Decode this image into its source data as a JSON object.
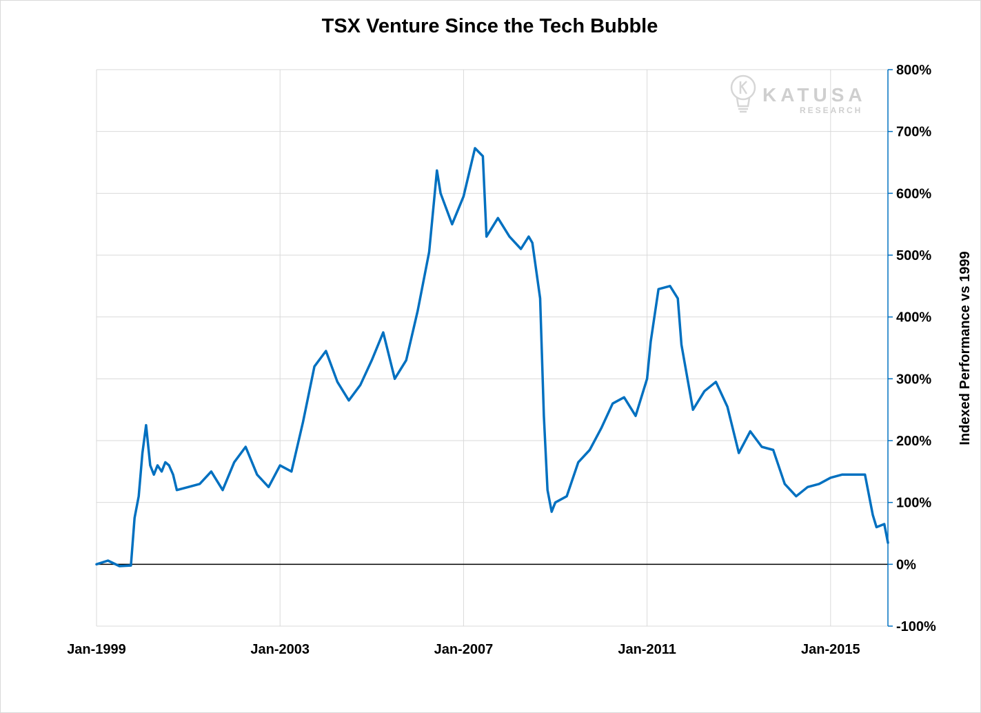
{
  "chart_data": {
    "type": "line",
    "title": "TSX Venture Since the Tech Bubble",
    "ylabel": "Indexed Performance vs 1999",
    "xlabel": "",
    "ylim": [
      -100,
      800
    ],
    "y_ticks": [
      "-100%",
      "0%",
      "100%",
      "200%",
      "300%",
      "400%",
      "500%",
      "600%",
      "700%",
      "800%"
    ],
    "x_ticks": [
      "Jan-1999",
      "Jan-2003",
      "Jan-2007",
      "Jan-2011",
      "Jan-2015"
    ],
    "x_start": "Jan-1999",
    "x_end": "Apr-2016",
    "grid": true,
    "series": [
      {
        "color": "#0070C0",
        "x": [
          1999.0,
          1999.25,
          1999.5,
          1999.75,
          1999.83,
          1999.92,
          2000.0,
          2000.08,
          2000.17,
          2000.25,
          2000.33,
          2000.42,
          2000.5,
          2000.58,
          2000.67,
          2000.75,
          2001.0,
          2001.25,
          2001.5,
          2001.75,
          2002.0,
          2002.25,
          2002.5,
          2002.75,
          2003.0,
          2003.25,
          2003.5,
          2003.75,
          2004.0,
          2004.25,
          2004.5,
          2004.75,
          2005.0,
          2005.25,
          2005.5,
          2005.75,
          2006.0,
          2006.25,
          2006.42,
          2006.5,
          2006.75,
          2007.0,
          2007.25,
          2007.42,
          2007.5,
          2007.75,
          2008.0,
          2008.25,
          2008.42,
          2008.5,
          2008.67,
          2008.75,
          2008.83,
          2008.92,
          2009.0,
          2009.25,
          2009.5,
          2009.75,
          2010.0,
          2010.25,
          2010.5,
          2010.75,
          2011.0,
          2011.08,
          2011.25,
          2011.5,
          2011.67,
          2011.75,
          2012.0,
          2012.25,
          2012.5,
          2012.75,
          2013.0,
          2013.25,
          2013.5,
          2013.75,
          2014.0,
          2014.25,
          2014.5,
          2014.75,
          2015.0,
          2015.25,
          2015.5,
          2015.75,
          2015.92,
          2016.0,
          2016.17,
          2016.25
        ],
        "values": [
          0,
          6,
          -3,
          -2,
          75,
          110,
          180,
          225,
          160,
          145,
          160,
          150,
          165,
          160,
          145,
          120,
          125,
          130,
          150,
          120,
          165,
          190,
          145,
          125,
          160,
          150,
          230,
          320,
          345,
          295,
          265,
          290,
          330,
          375,
          300,
          330,
          410,
          505,
          637,
          600,
          550,
          595,
          673,
          660,
          530,
          560,
          530,
          510,
          530,
          520,
          430,
          240,
          120,
          85,
          100,
          110,
          165,
          185,
          220,
          260,
          270,
          240,
          300,
          360,
          445,
          450,
          430,
          355,
          250,
          280,
          295,
          255,
          180,
          215,
          190,
          185,
          130,
          110,
          125,
          130,
          140,
          145,
          145,
          145,
          80,
          60,
          65,
          35
        ]
      }
    ]
  },
  "watermark": {
    "brand": "KATUSA",
    "sub": "RESEARCH",
    "icon": "lightbulb-k-icon"
  }
}
